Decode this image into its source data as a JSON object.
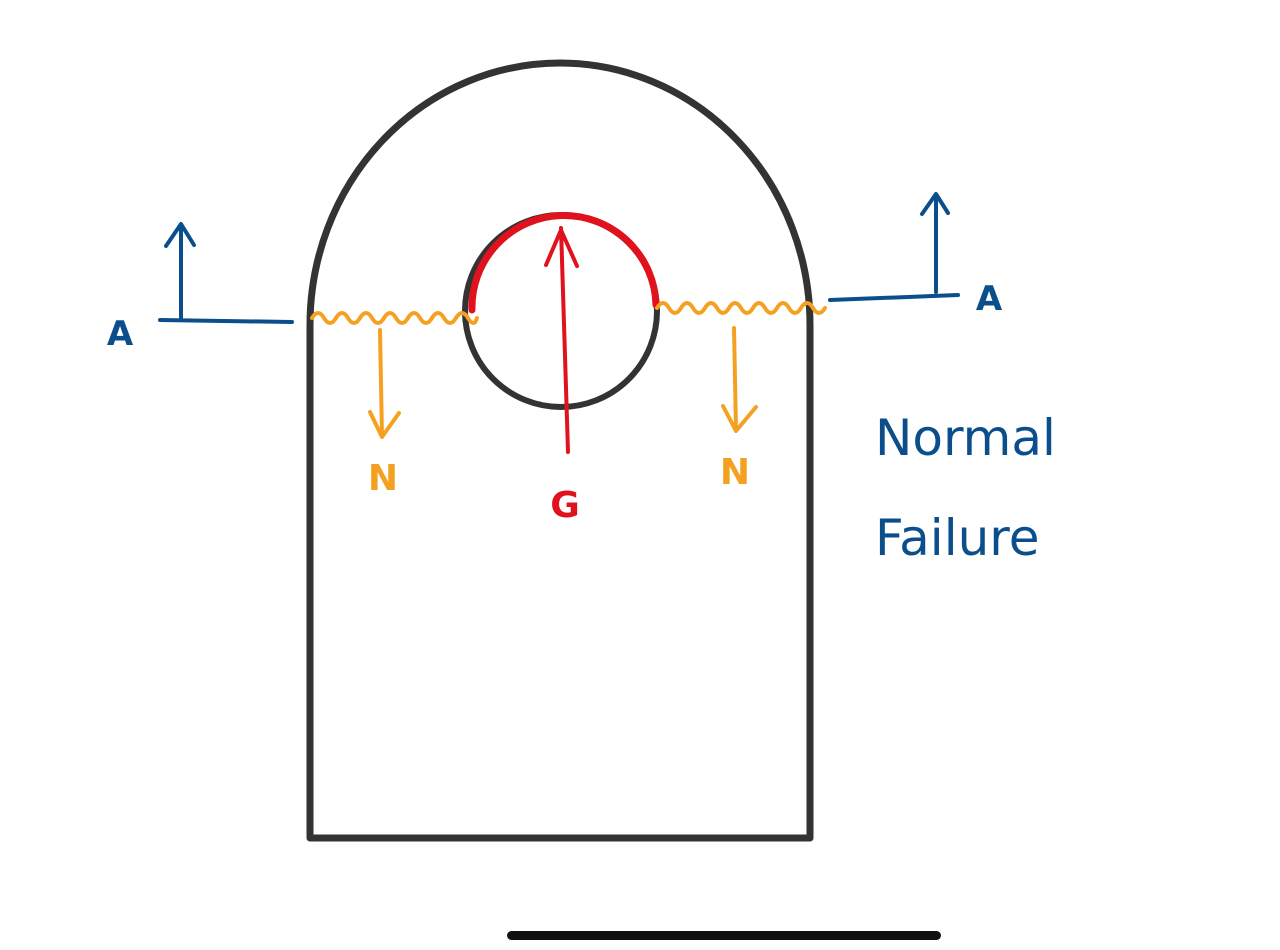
{
  "colors": {
    "outline": "#333333",
    "section": "#0a4f8c",
    "normal_force": "#f4a122",
    "bearing_force": "#e0121e",
    "home_indicator": "#111111"
  },
  "section_line": {
    "left_label": "A",
    "right_label": "A"
  },
  "forces": {
    "normal_left_label": "N",
    "normal_right_label": "N",
    "bearing_label": "G"
  },
  "caption": {
    "line1": "Normal",
    "line2": "Failure"
  }
}
